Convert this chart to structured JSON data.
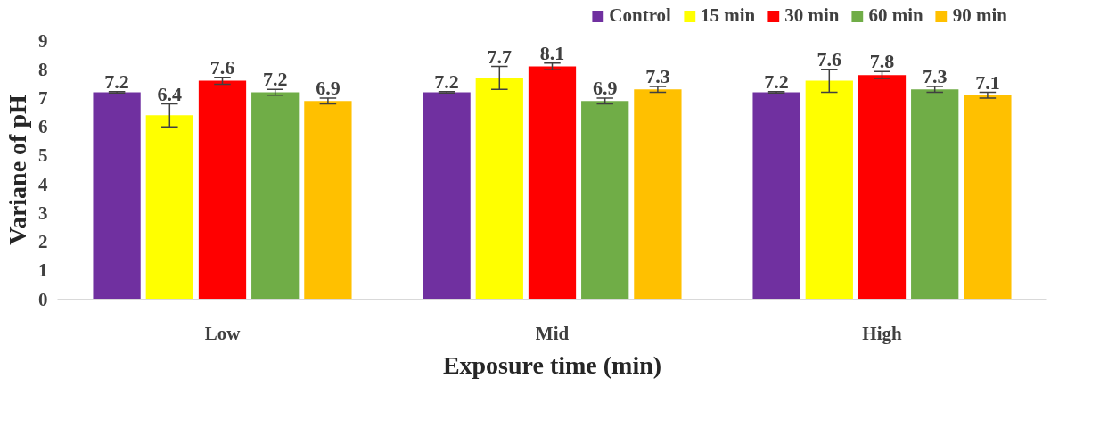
{
  "chart_data": {
    "type": "bar",
    "xlabel": "Exposure time (min)",
    "ylabel": "Variane of pH",
    "categories": [
      "Low",
      "Mid",
      "High"
    ],
    "series": [
      {
        "name": "Control",
        "color": "#7030a0",
        "values": [
          7.2,
          7.2,
          7.2
        ],
        "errors": [
          0.02,
          0.02,
          0.02
        ]
      },
      {
        "name": "15 min",
        "color": "#ffff00",
        "values": [
          6.4,
          7.7,
          7.6
        ],
        "errors": [
          0.4,
          0.4,
          0.4
        ]
      },
      {
        "name": "30 min",
        "color": "#ff0000",
        "values": [
          7.6,
          8.1,
          7.8
        ],
        "errors": [
          0.12,
          0.12,
          0.12
        ]
      },
      {
        "name": "60 min",
        "color": "#70ad47",
        "values": [
          7.2,
          6.9,
          7.3
        ],
        "errors": [
          0.1,
          0.1,
          0.1
        ]
      },
      {
        "name": "90 min",
        "color": "#ffc000",
        "values": [
          6.9,
          7.3,
          7.1
        ],
        "errors": [
          0.1,
          0.1,
          0.1
        ]
      }
    ],
    "ylim": [
      0,
      9
    ],
    "yticks": [
      0,
      1,
      2,
      3,
      4,
      5,
      6,
      7,
      8,
      9
    ],
    "grid": false,
    "legend": "top right",
    "data_labels": true
  }
}
